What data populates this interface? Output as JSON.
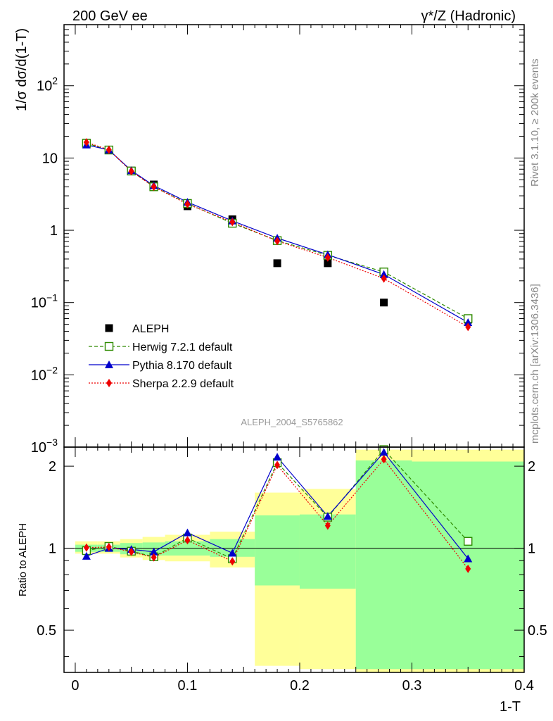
{
  "header": {
    "left_title": "200 GeV ee",
    "right_title": "γ*/Z (Hadronic)"
  },
  "side_text": {
    "rivet": "Rivet 3.1.10, ≥ 200k events",
    "mcplots": "mcplots.cern.ch [arXiv:1306.3436]"
  },
  "watermark": "ALEPH_2004_S5765862",
  "axes": {
    "xlabel": "1-T",
    "ylabel_main": "1/σ  dσ/d(1-T)",
    "ylabel_ratio": "Ratio to ALEPH",
    "x_ticks": [
      "0",
      "0.1",
      "0.2",
      "0.3",
      "0.4"
    ],
    "main_y_ticks": [
      {
        "base": "10",
        "exp": "−3"
      },
      {
        "base": "10",
        "exp": "−2"
      },
      {
        "base": "10",
        "exp": "−1"
      },
      {
        "base": "1",
        "exp": ""
      },
      {
        "base": "10",
        "exp": ""
      },
      {
        "base": "10",
        "exp": "2"
      }
    ],
    "ratio_y_ticks": [
      "0.5",
      "1",
      "2"
    ]
  },
  "legend": [
    {
      "key": "aleph",
      "label": "ALEPH"
    },
    {
      "key": "herwig",
      "label": "Herwig 7.2.1 default"
    },
    {
      "key": "pythia",
      "label": "Pythia 8.170 default"
    },
    {
      "key": "sherpa",
      "label": "Sherpa 2.2.9 default"
    }
  ],
  "colors": {
    "aleph": "#000000",
    "herwig": "#2e8b00",
    "pythia": "#0000cc",
    "sherpa": "#ee0000",
    "band_total": "#ffff99",
    "band_stat": "#99ff99"
  },
  "chart_data": {
    "type": "line",
    "x_range": [
      -0.01,
      0.4
    ],
    "main_ylim": [
      0.001,
      700
    ],
    "main_yscale": "log",
    "ratio_ylim": [
      0.35,
      2.35
    ],
    "ratio_yscale": "log",
    "bins": [
      {
        "lo": 0.0,
        "hi": 0.02,
        "x": 0.01
      },
      {
        "lo": 0.02,
        "hi": 0.04,
        "x": 0.03
      },
      {
        "lo": 0.04,
        "hi": 0.06,
        "x": 0.05
      },
      {
        "lo": 0.06,
        "hi": 0.08,
        "x": 0.07
      },
      {
        "lo": 0.08,
        "hi": 0.12,
        "x": 0.1
      },
      {
        "lo": 0.12,
        "hi": 0.16,
        "x": 0.14
      },
      {
        "lo": 0.16,
        "hi": 0.2,
        "x": 0.18
      },
      {
        "lo": 0.2,
        "hi": 0.25,
        "x": 0.225
      },
      {
        "lo": 0.25,
        "hi": 0.3,
        "x": 0.275
      },
      {
        "lo": 0.3,
        "hi": 0.4,
        "x": 0.35
      }
    ],
    "data": {
      "name": "ALEPH",
      "values": [
        16.3,
        12.8,
        6.7,
        4.3,
        2.15,
        1.42,
        0.35,
        0.35,
        0.1,
        0.058
      ]
    },
    "series": [
      {
        "key": "herwig",
        "name": "Herwig 7.2.1 default",
        "values": [
          16.0,
          12.9,
          6.6,
          4.0,
          2.35,
          1.25,
          0.72,
          0.45,
          0.265,
          0.06
        ],
        "ratio": [
          0.98,
          1.015,
          0.975,
          0.93,
          1.09,
          0.915,
          2.06,
          1.3,
          2.3,
          1.06
        ]
      },
      {
        "key": "pythia",
        "name": "Pythia 8.170 default",
        "values": [
          15.2,
          12.9,
          6.7,
          4.15,
          2.45,
          1.35,
          0.78,
          0.46,
          0.245,
          0.053
        ],
        "ratio": [
          0.935,
          1.0,
          0.99,
          0.97,
          1.14,
          0.96,
          2.16,
          1.31,
          2.25,
          0.915
        ]
      },
      {
        "key": "sherpa",
        "name": "Sherpa 2.2.9 default",
        "values": [
          16.5,
          13.0,
          6.55,
          4.0,
          2.3,
          1.3,
          0.71,
          0.42,
          0.215,
          0.046
        ],
        "ratio": [
          1.005,
          1.01,
          0.97,
          0.925,
          1.07,
          0.895,
          2.02,
          1.21,
          2.12,
          0.84
        ]
      }
    ],
    "ratio_bands": {
      "total": [
        [
          0.955,
          1.06
        ],
        [
          0.955,
          1.06
        ],
        [
          0.925,
          1.08
        ],
        [
          0.905,
          1.1
        ],
        [
          0.895,
          1.12
        ],
        [
          0.85,
          1.15
        ],
        [
          0.37,
          1.6
        ],
        [
          0.36,
          1.65
        ],
        [
          0.35,
          2.3
        ],
        [
          0.35,
          2.3
        ]
      ],
      "stat": [
        [
          0.97,
          1.03
        ],
        [
          0.97,
          1.03
        ],
        [
          0.95,
          1.045
        ],
        [
          0.94,
          1.05
        ],
        [
          0.94,
          1.06
        ],
        [
          0.93,
          1.08
        ],
        [
          0.73,
          1.32
        ],
        [
          0.71,
          1.33
        ],
        [
          0.36,
          2.1
        ],
        [
          0.36,
          2.08
        ]
      ]
    }
  }
}
